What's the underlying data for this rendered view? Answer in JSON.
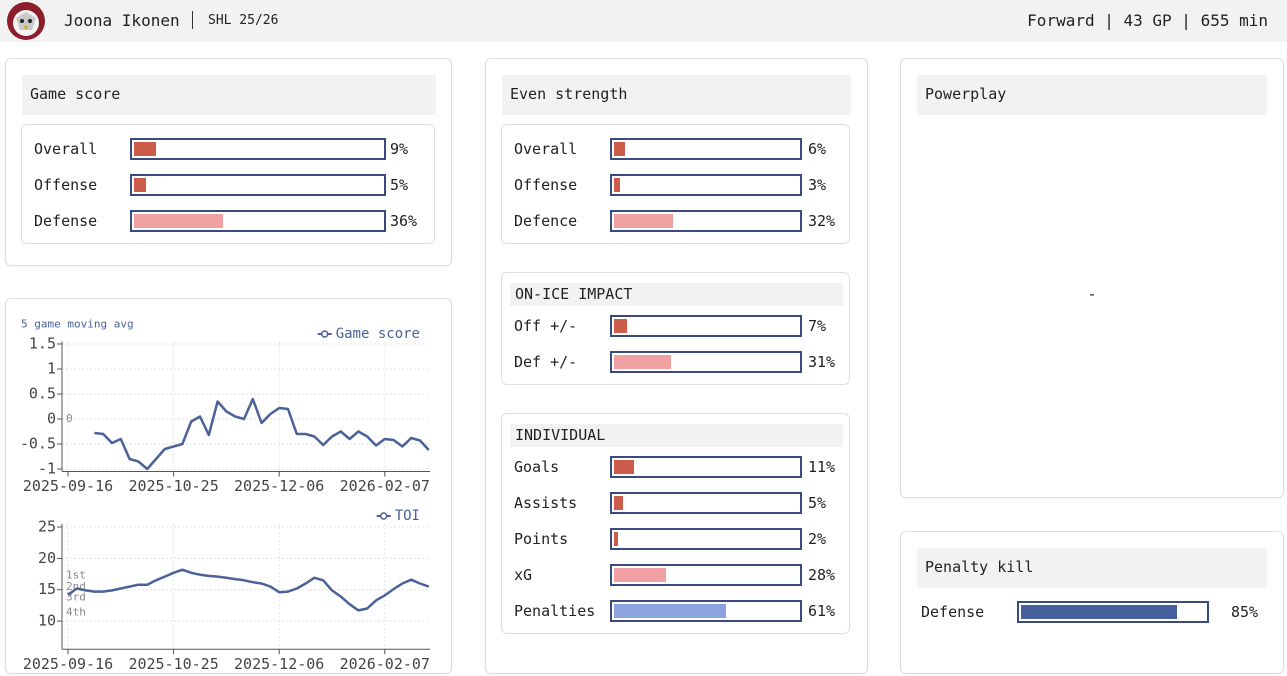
{
  "header": {
    "player": "Joona Ikonen",
    "season": "SHL 25/26",
    "summary": "Forward | 43 GP | 655 min"
  },
  "panels": {
    "game_score": {
      "title": "Game score",
      "rows": {
        "labels": [
          "Overall",
          "Offense",
          "Defense"
        ],
        "values": [
          9,
          5,
          36
        ],
        "value_labels": [
          "9%",
          "5%",
          "36%"
        ],
        "colors": [
          "#cd5c4b",
          "#cd5c4b",
          "#f0a0a0"
        ],
        "xlim": [
          0,
          100
        ]
      }
    },
    "even_strength": {
      "title": "Even strength",
      "groups": [
        {
          "labels": [
            "Overall",
            "Offense",
            "Defence"
          ],
          "values": [
            6,
            3,
            32
          ],
          "value_labels": [
            "6%",
            "3%",
            "32%"
          ],
          "colors": [
            "#cd5c4b",
            "#cd5c4b",
            "#f0a0a0"
          ],
          "xlim": [
            0,
            100
          ]
        },
        {
          "title": "ON-ICE IMPACT",
          "labels": [
            "Off +/-",
            "Def +/-"
          ],
          "values": [
            7,
            31
          ],
          "value_labels": [
            "7%",
            "31%"
          ],
          "colors": [
            "#cd5c4b",
            "#f0a0a0"
          ],
          "xlim": [
            0,
            100
          ]
        },
        {
          "title": "INDIVIDUAL",
          "labels": [
            "Goals",
            "Assists",
            "Points",
            "xG",
            "Penalties"
          ],
          "values": [
            11,
            5,
            2,
            28,
            61
          ],
          "value_labels": [
            "11%",
            "5%",
            "2%",
            "28%",
            "61%"
          ],
          "colors": [
            "#cd5c4b",
            "#cd5c4b",
            "#cd5c4b",
            "#f0a0a0",
            "#8ba3e0"
          ],
          "xlim": [
            0,
            100
          ]
        }
      ]
    },
    "powerplay": {
      "title": "Powerplay",
      "text": "-"
    },
    "penalty_kill": {
      "title": "Penalty kill",
      "rows": {
        "labels": [
          "Defense"
        ],
        "values": [
          85
        ],
        "value_labels": [
          "85%"
        ],
        "colors": [
          "#455f9c"
        ],
        "xlim": [
          0,
          100
        ]
      }
    }
  },
  "chart_data": [
    {
      "type": "line",
      "subtitle": "5 game moving avg",
      "categories": [
        "2025-09-16",
        null,
        null,
        null,
        null,
        null,
        null,
        null,
        null,
        null,
        null,
        null,
        "2025-10-25",
        null,
        null,
        null,
        null,
        null,
        null,
        null,
        null,
        null,
        null,
        null,
        "2025-12-06",
        null,
        null,
        null,
        null,
        null,
        null,
        null,
        null,
        null,
        null,
        null,
        "2026-02-07",
        null,
        null,
        null,
        null,
        null
      ],
      "series": [
        {
          "name": "Game score",
          "color": "#4a6199",
          "values": [
            null,
            null,
            null,
            -0.28,
            -0.3,
            -0.48,
            -0.4,
            -0.8,
            -0.85,
            -1.0,
            -0.8,
            -0.6,
            -0.55,
            -0.5,
            -0.05,
            0.05,
            -0.32,
            0.35,
            0.15,
            0.05,
            0.0,
            0.4,
            -0.08,
            0.1,
            0.22,
            0.2,
            -0.3,
            -0.3,
            -0.35,
            -0.52,
            -0.35,
            -0.25,
            -0.4,
            -0.25,
            -0.35,
            -0.53,
            -0.4,
            -0.42,
            -0.55,
            -0.38,
            -0.43,
            -0.62
          ]
        }
      ],
      "ylim": [
        -1.05,
        1.55
      ],
      "yticks": [
        -1,
        -0.5,
        0,
        0.5,
        1,
        1.5
      ],
      "grid": true,
      "annotations": [
        {
          "y": 0,
          "text": "0"
        }
      ]
    },
    {
      "type": "line",
      "categories": [
        "2025-09-16",
        null,
        null,
        null,
        null,
        null,
        null,
        null,
        null,
        null,
        null,
        null,
        "2025-10-25",
        null,
        null,
        null,
        null,
        null,
        null,
        null,
        null,
        null,
        null,
        null,
        "2025-12-06",
        null,
        null,
        null,
        null,
        null,
        null,
        null,
        null,
        null,
        null,
        null,
        "2026-02-07",
        null,
        null,
        null,
        null,
        null
      ],
      "series": [
        {
          "name": "TOI",
          "color": "#4a6199",
          "values": [
            14.2,
            15.2,
            14.9,
            14.7,
            14.7,
            14.9,
            15.2,
            15.5,
            15.8,
            15.8,
            16.5,
            17.1,
            17.7,
            18.2,
            17.7,
            17.4,
            17.2,
            17.1,
            16.9,
            16.7,
            16.5,
            16.2,
            16.0,
            15.5,
            14.6,
            14.7,
            15.2,
            16.0,
            16.9,
            16.5,
            14.9,
            13.9,
            12.7,
            11.7,
            12.0,
            13.3,
            14.1,
            15.1,
            16.0,
            16.6,
            16.0,
            15.5
          ]
        }
      ],
      "ylim": [
        5.5,
        25.5
      ],
      "yticks": [
        10,
        15,
        20,
        25
      ],
      "grid": true,
      "annotations": [
        {
          "y": 17.3,
          "text": "1st"
        },
        {
          "y": 15.4,
          "text": "2nd"
        },
        {
          "y": 13.8,
          "text": "3rd"
        },
        {
          "y": 11.4,
          "text": "4th"
        }
      ]
    }
  ]
}
